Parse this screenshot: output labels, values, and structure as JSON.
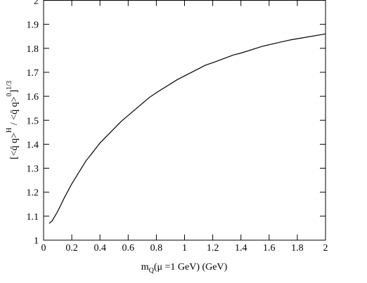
{
  "chart_data": {
    "type": "line",
    "xlabel": [
      "m",
      "Q",
      "(μ =1 GeV)    (GeV)"
    ],
    "ylabel": [
      "[<q̄ q>",
      "H",
      " / <q̄ q>",
      "0",
      "]",
      "1/3"
    ],
    "x": [
      0.04,
      0.06,
      0.1,
      0.15,
      0.2,
      0.3,
      0.4,
      0.5,
      0.55,
      0.6,
      0.75,
      0.8,
      0.95,
      1.0,
      1.15,
      1.2,
      1.35,
      1.4,
      1.55,
      1.6,
      1.75,
      1.8,
      2.0
    ],
    "series": [
      {
        "color": "#000000",
        "values": [
          1.07,
          1.08,
          1.12,
          1.18,
          1.235,
          1.33,
          1.405,
          1.465,
          1.495,
          1.52,
          1.595,
          1.615,
          1.67,
          1.685,
          1.73,
          1.74,
          1.773,
          1.78,
          1.808,
          1.815,
          1.835,
          1.84,
          1.86
        ]
      }
    ],
    "xlim": [
      0,
      2
    ],
    "xticks": [
      0,
      0.2,
      0.4,
      0.6,
      0.8,
      1,
      1.2,
      1.4,
      1.6,
      1.8,
      2
    ],
    "ylim": [
      1,
      2
    ],
    "yticks": [
      1,
      1.1,
      1.2,
      1.3,
      1.4,
      1.5,
      1.6,
      1.7,
      1.8,
      1.9,
      2
    ]
  }
}
